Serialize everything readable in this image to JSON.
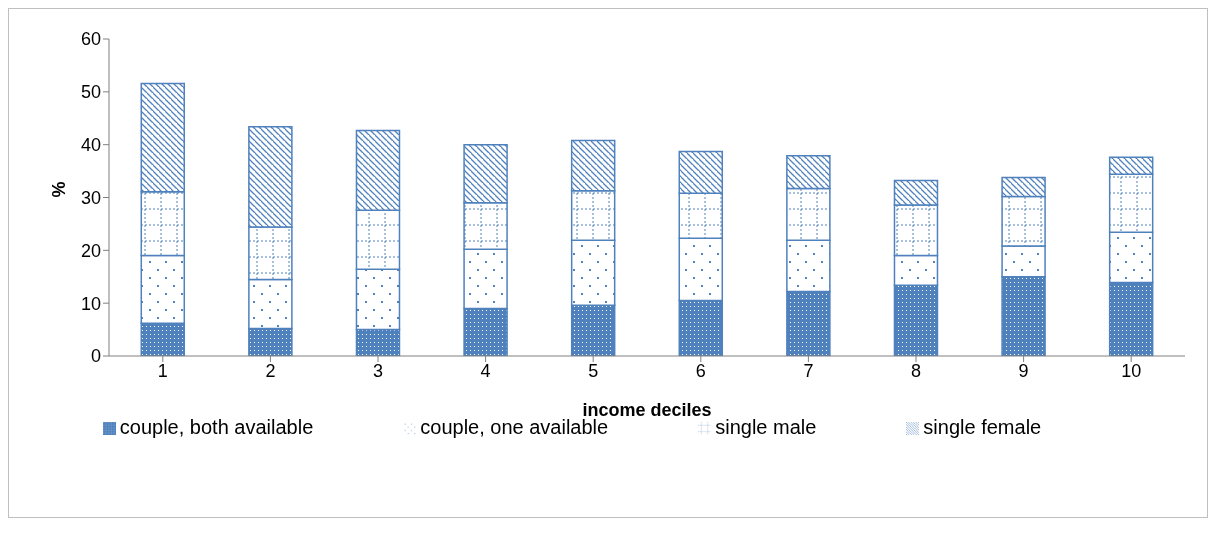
{
  "chart_data": {
    "type": "bar",
    "stacked": true,
    "xlabel": "income deciles",
    "ylabel": "%",
    "categories": [
      "1",
      "2",
      "3",
      "4",
      "5",
      "6",
      "7",
      "8",
      "9",
      "10"
    ],
    "series": [
      {
        "name": "couple, both available",
        "color": "#4f81bd",
        "values": [
          6.2,
          5.2,
          5.0,
          9.0,
          9.6,
          10.5,
          12.2,
          13.4,
          15.0,
          13.9
        ]
      },
      {
        "name": "couple, one available",
        "color": "#4f81bd",
        "values": [
          12.8,
          9.3,
          11.4,
          11.2,
          12.3,
          11.8,
          9.7,
          5.6,
          5.8,
          9.5
        ]
      },
      {
        "name": "single male",
        "color": "#4f81bd",
        "values": [
          12.1,
          9.9,
          11.2,
          8.8,
          9.4,
          8.5,
          9.8,
          9.6,
          9.4,
          11.0
        ]
      },
      {
        "name": "single female",
        "color": "#4f81bd",
        "values": [
          20.5,
          19.0,
          15.1,
          11.0,
          9.5,
          7.9,
          6.2,
          4.6,
          3.6,
          3.2
        ]
      }
    ],
    "ylim": [
      0,
      60
    ],
    "yticks": [
      0,
      10,
      20,
      30,
      40,
      50,
      60
    ],
    "grid": false,
    "legend": "bottom"
  }
}
